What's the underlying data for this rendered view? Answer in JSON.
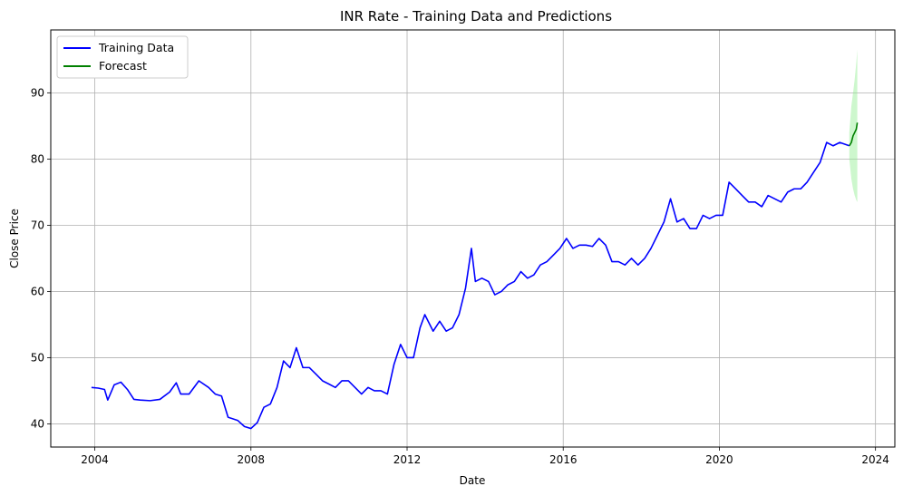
{
  "chart_data": {
    "type": "line",
    "title": "INR Rate - Training Data and Predictions",
    "xlabel": "Date",
    "ylabel": "Close Price",
    "xlim": [
      "2002-11-15",
      "2024-06-30"
    ],
    "ylim": [
      36.5,
      99.5
    ],
    "x_ticks": [
      "2004",
      "2008",
      "2012",
      "2016",
      "2020",
      "2024"
    ],
    "y_ticks": [
      40,
      50,
      60,
      70,
      80,
      90
    ],
    "grid": true,
    "legend_position": "top-left",
    "series": [
      {
        "name": "Training Data",
        "color": "#0000ff",
        "points": [
          [
            "2003-12-01",
            45.5
          ],
          [
            "2004-02-01",
            45.4
          ],
          [
            "2004-04-01",
            45.2
          ],
          [
            "2004-05-01",
            43.6
          ],
          [
            "2004-07-01",
            45.9
          ],
          [
            "2004-09-01",
            46.3
          ],
          [
            "2004-11-01",
            45.2
          ],
          [
            "2005-01-01",
            43.7
          ],
          [
            "2005-03-01",
            43.6
          ],
          [
            "2005-06-01",
            43.5
          ],
          [
            "2005-09-01",
            43.7
          ],
          [
            "2005-12-01",
            44.8
          ],
          [
            "2006-02-01",
            46.2
          ],
          [
            "2006-03-15",
            44.5
          ],
          [
            "2006-06-01",
            44.5
          ],
          [
            "2006-09-01",
            46.5
          ],
          [
            "2006-12-01",
            45.5
          ],
          [
            "2007-02-01",
            44.5
          ],
          [
            "2007-04-01",
            44.2
          ],
          [
            "2007-06-01",
            41.0
          ],
          [
            "2007-09-01",
            40.5
          ],
          [
            "2007-11-01",
            39.6
          ],
          [
            "2008-01-01",
            39.3
          ],
          [
            "2008-03-01",
            40.2
          ],
          [
            "2008-05-01",
            42.5
          ],
          [
            "2008-07-01",
            43.0
          ],
          [
            "2008-09-01",
            45.5
          ],
          [
            "2008-11-01",
            49.5
          ],
          [
            "2009-01-01",
            48.5
          ],
          [
            "2009-03-01",
            51.5
          ],
          [
            "2009-05-01",
            48.5
          ],
          [
            "2009-07-01",
            48.5
          ],
          [
            "2009-09-01",
            47.5
          ],
          [
            "2009-11-01",
            46.5
          ],
          [
            "2010-01-01",
            46.0
          ],
          [
            "2010-03-01",
            45.5
          ],
          [
            "2010-05-01",
            46.5
          ],
          [
            "2010-07-01",
            46.5
          ],
          [
            "2010-09-01",
            45.5
          ],
          [
            "2010-11-01",
            44.5
          ],
          [
            "2011-01-01",
            45.5
          ],
          [
            "2011-03-01",
            45.0
          ],
          [
            "2011-05-01",
            45.0
          ],
          [
            "2011-07-01",
            44.5
          ],
          [
            "2011-09-01",
            49.0
          ],
          [
            "2011-11-01",
            52.0
          ],
          [
            "2012-01-01",
            50.0
          ],
          [
            "2012-03-01",
            50.0
          ],
          [
            "2012-05-01",
            54.5
          ],
          [
            "2012-06-15",
            56.5
          ],
          [
            "2012-09-01",
            54.0
          ],
          [
            "2012-11-01",
            55.5
          ],
          [
            "2013-01-01",
            54.0
          ],
          [
            "2013-03-01",
            54.5
          ],
          [
            "2013-05-01",
            56.5
          ],
          [
            "2013-07-01",
            60.5
          ],
          [
            "2013-08-25",
            66.5
          ],
          [
            "2013-10-01",
            61.5
          ],
          [
            "2013-12-01",
            62.0
          ],
          [
            "2014-02-01",
            61.5
          ],
          [
            "2014-04-01",
            59.5
          ],
          [
            "2014-06-01",
            60.0
          ],
          [
            "2014-08-01",
            61.0
          ],
          [
            "2014-10-01",
            61.5
          ],
          [
            "2014-12-01",
            63.0
          ],
          [
            "2015-02-01",
            62.0
          ],
          [
            "2015-04-01",
            62.5
          ],
          [
            "2015-06-01",
            64.0
          ],
          [
            "2015-08-01",
            64.5
          ],
          [
            "2015-10-01",
            65.5
          ],
          [
            "2015-12-01",
            66.5
          ],
          [
            "2016-02-01",
            68.0
          ],
          [
            "2016-04-01",
            66.5
          ],
          [
            "2016-06-01",
            67.0
          ],
          [
            "2016-08-01",
            67.0
          ],
          [
            "2016-10-01",
            66.8
          ],
          [
            "2016-12-01",
            68.0
          ],
          [
            "2017-02-01",
            67.0
          ],
          [
            "2017-04-01",
            64.5
          ],
          [
            "2017-06-01",
            64.5
          ],
          [
            "2017-08-01",
            64.0
          ],
          [
            "2017-10-01",
            65.0
          ],
          [
            "2017-12-01",
            64.0
          ],
          [
            "2018-02-01",
            65.0
          ],
          [
            "2018-04-01",
            66.5
          ],
          [
            "2018-06-01",
            68.5
          ],
          [
            "2018-08-01",
            70.5
          ],
          [
            "2018-10-01",
            74.0
          ],
          [
            "2018-12-01",
            70.5
          ],
          [
            "2019-02-01",
            71.0
          ],
          [
            "2019-04-01",
            69.5
          ],
          [
            "2019-06-01",
            69.5
          ],
          [
            "2019-08-01",
            71.5
          ],
          [
            "2019-10-01",
            71.0
          ],
          [
            "2019-12-01",
            71.5
          ],
          [
            "2020-02-01",
            71.5
          ],
          [
            "2020-04-01",
            76.5
          ],
          [
            "2020-06-01",
            75.5
          ],
          [
            "2020-08-01",
            74.5
          ],
          [
            "2020-10-01",
            73.5
          ],
          [
            "2020-12-01",
            73.5
          ],
          [
            "2021-02-01",
            72.8
          ],
          [
            "2021-04-01",
            74.5
          ],
          [
            "2021-06-01",
            74.0
          ],
          [
            "2021-08-01",
            73.5
          ],
          [
            "2021-10-01",
            75.0
          ],
          [
            "2021-12-01",
            75.5
          ],
          [
            "2022-02-01",
            75.5
          ],
          [
            "2022-04-01",
            76.5
          ],
          [
            "2022-06-01",
            78.0
          ],
          [
            "2022-08-01",
            79.5
          ],
          [
            "2022-10-01",
            82.5
          ],
          [
            "2022-12-01",
            82.0
          ],
          [
            "2023-02-01",
            82.5
          ],
          [
            "2023-05-01",
            82.0
          ]
        ]
      },
      {
        "name": "Forecast",
        "color": "#008000",
        "points": [
          [
            "2023-05-01",
            82.0
          ],
          [
            "2023-05-20",
            82.5
          ],
          [
            "2023-06-05",
            83.5
          ],
          [
            "2023-06-20",
            84.0
          ],
          [
            "2023-07-05",
            84.5
          ],
          [
            "2023-07-15",
            85.5
          ]
        ]
      }
    ],
    "confidence_band": {
      "color": "#90ee90",
      "points": [
        [
          "2023-05-01",
          80.0,
          84.0
        ],
        [
          "2023-05-20",
          77.0,
          88.0
        ],
        [
          "2023-06-05",
          75.5,
          90.0
        ],
        [
          "2023-06-20",
          74.5,
          92.0
        ],
        [
          "2023-07-05",
          73.8,
          94.5
        ],
        [
          "2023-07-15",
          73.5,
          96.5
        ]
      ]
    }
  }
}
